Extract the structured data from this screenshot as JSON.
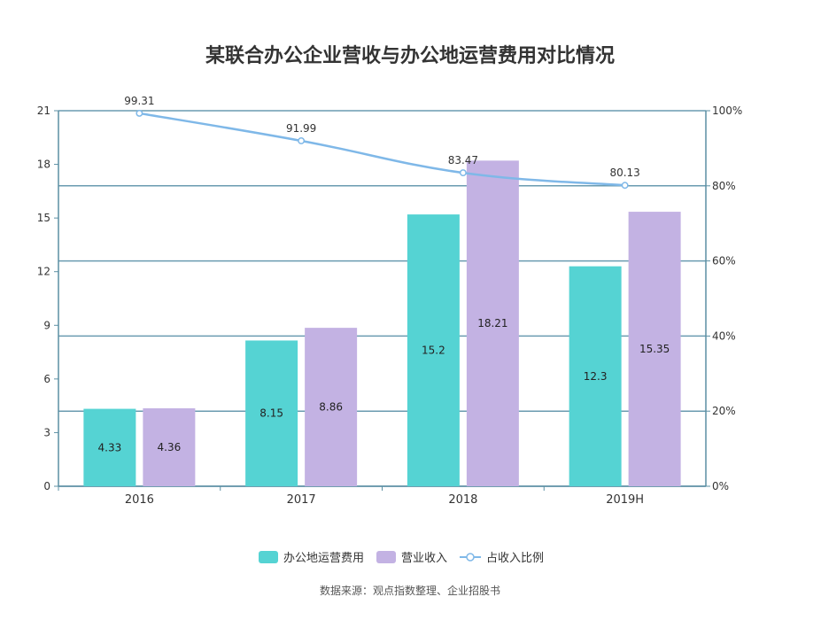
{
  "chart_data": {
    "type": "bar",
    "title": "某联合办公企业营收与办公地运营费用对比情况",
    "categories": [
      "2016",
      "2017",
      "2018",
      "2019H"
    ],
    "series": [
      {
        "name": "办公地运营费用",
        "kind": "bar",
        "axis": "left",
        "color": "#55D3D3",
        "values": [
          4.33,
          8.15,
          15.2,
          12.3
        ]
      },
      {
        "name": "营业收入",
        "kind": "bar",
        "axis": "left",
        "color": "#C3B2E3",
        "values": [
          4.36,
          8.86,
          18.21,
          15.35
        ]
      },
      {
        "name": "占收入比例",
        "kind": "line",
        "axis": "right",
        "color": "#7FB8E8",
        "values": [
          99.31,
          91.99,
          83.47,
          80.13
        ]
      }
    ],
    "y_left": {
      "min": 0,
      "max": 21,
      "ticks": [
        "0",
        "3",
        "6",
        "9",
        "12",
        "15",
        "18",
        "21"
      ]
    },
    "y_right": {
      "min": 0,
      "max": 100,
      "ticks": [
        "0%",
        "20%",
        "40%",
        "60%",
        "80%",
        "100%"
      ]
    },
    "grid": true,
    "legend": "bottom"
  },
  "source_note": "数据来源：观点指数整理、企业招股书"
}
